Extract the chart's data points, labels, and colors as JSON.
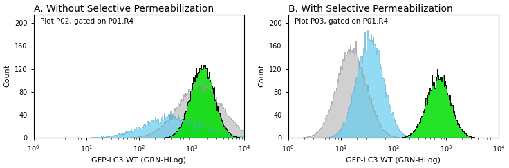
{
  "title_A": "A. Without Selective Permeabilization",
  "title_B": "B. With Selective Permeabilization",
  "annotation_A": "Plot P02, gated on P01.R4",
  "annotation_B": "Plot P03, gated on P01.R4",
  "xlabel": "GFP-LC3 WT (GRN-HLog)",
  "ylabel": "Count",
  "yticks": [
    0,
    40,
    80,
    120,
    160,
    200
  ],
  "ylim": [
    0,
    215
  ],
  "xlim_log": [
    1.0,
    10000.0
  ],
  "color_green": "#00dd00",
  "color_blue": "#66ccee",
  "color_gray": "#aaaaaa",
  "color_black": "#000000",
  "title_fontsize": 10,
  "annotation_fontsize": 7.5,
  "axis_fontsize": 8,
  "tick_fontsize": 7
}
